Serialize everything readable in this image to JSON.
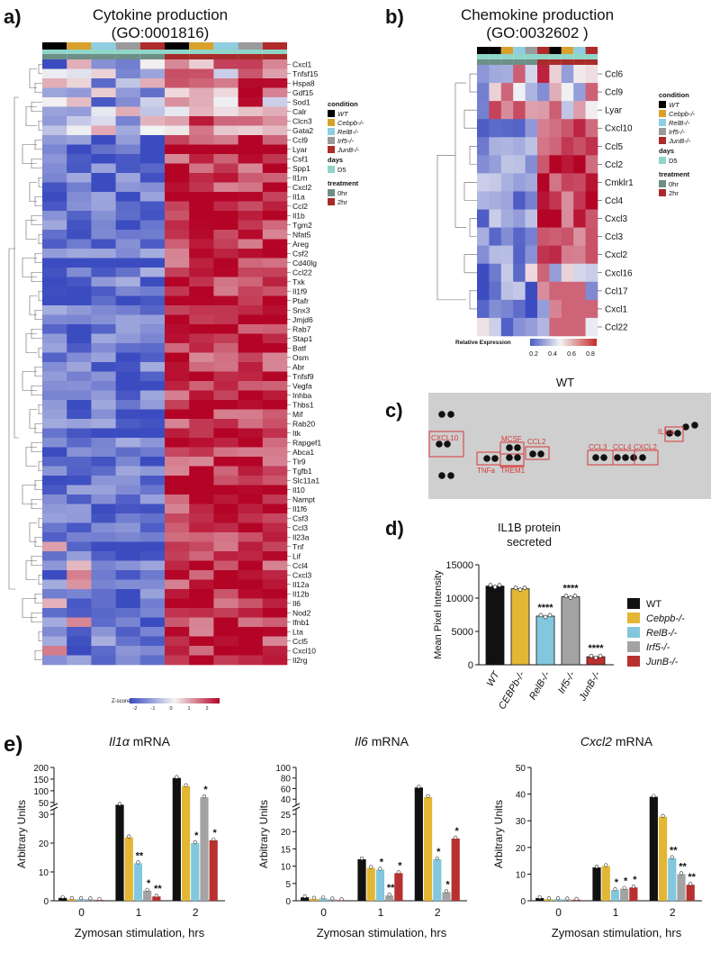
{
  "panels": {
    "a": {
      "letter": "a)",
      "title_line1": "Cytokine production",
      "title_line2": "(GO:0001816)",
      "zscore_label": "Z-score",
      "zscore_ticks": [
        "-2",
        "-1",
        "0",
        "1",
        "2"
      ],
      "genes": [
        "Cxcl1",
        "Tnfsf15",
        "Hspa8",
        "Gdf15",
        "Sod1",
        "Calr",
        "Clcn3",
        "Gata2",
        "Ccl9",
        "Lyar",
        "Csf1",
        "Spp1",
        "Il1rn",
        "Cxcl2",
        "Il1a",
        "Ccl2",
        "Il1b",
        "Tgm2",
        "Nfat5",
        "Areg",
        "Csf2",
        "Cd40lg",
        "Ccl22",
        "Txk",
        "Il1f9",
        "Ptafr",
        "Snx3",
        "Jmjd6",
        "Rab7",
        "Stap1",
        "Batf",
        "Osm",
        "Abr",
        "Tnfsf9",
        "Vegfa",
        "Inhba",
        "Thbs1",
        "Mif",
        "Rab20",
        "Itk",
        "Rapgef1",
        "Abca1",
        "Tlr9",
        "Tgfb1",
        "Slc11a1",
        "Il10",
        "Nampt",
        "Il1f6",
        "Csf3",
        "Ccl3",
        "Il23a",
        "Tnf",
        "Lif",
        "Ccl4",
        "Cxcl3",
        "Il12a",
        "Il12b",
        "Il6",
        "Nod2",
        "Ifnb1",
        "Lta",
        "Ccl5",
        "Cxcl10",
        "Il2rg"
      ]
    },
    "b": {
      "letter": "b)",
      "title_line1": "Chemokine production",
      "title_line2": "(GO:0032602 )",
      "scale_label": "Relative Expression",
      "scale_ticks": [
        "0.2",
        "0.4",
        "0.6",
        "0.8"
      ],
      "genes": [
        "Ccl6",
        "Ccl9",
        "Lyar",
        "Cxcl10",
        "Ccl5",
        "Ccl2",
        "Cmklr1",
        "Ccl4",
        "Cxcl3",
        "Ccl3",
        "Cxcl2",
        "Cxcl16",
        "Ccl17",
        "Cxcl1",
        "Ccl22"
      ]
    },
    "c": {
      "letter": "c)",
      "title": "WT",
      "boxes": [
        "CXCL10",
        "MCSF",
        "CCL2",
        "TNFa",
        "TREM1",
        "CCL3",
        "CCL4",
        "CXCL2",
        "IL1ra"
      ]
    },
    "d": {
      "letter": "d)",
      "title_line1": "IL1B protein",
      "title_line2": "secreted"
    },
    "e": {
      "letter": "e)"
    }
  },
  "legend_ab": {
    "condition_title": "condition",
    "days_title": "days",
    "treatment_title": "treatment",
    "conditions": [
      {
        "label": "WT",
        "color": "#000000"
      },
      {
        "label": "Cebpb-/-",
        "color": "#d9a12b"
      },
      {
        "label": "RelB-/-",
        "color": "#8fcde0"
      },
      {
        "label": "Irf5-/-",
        "color": "#9a9a9a"
      },
      {
        "label": "JunB-/-",
        "color": "#b02a2a"
      }
    ],
    "days": [
      {
        "label": "D5",
        "color": "#8fd6c8"
      }
    ],
    "treatments": [
      {
        "label": "0hr",
        "color": "#6e8f86"
      },
      {
        "label": "2hr",
        "color": "#a82b2b"
      }
    ]
  },
  "legend_de": [
    {
      "label": "WT",
      "color": "#111111"
    },
    {
      "label": "Cebpb-/-",
      "color": "#e3b634"
    },
    {
      "label": "RelB-/-",
      "color": "#82c7dd"
    },
    {
      "label": "Irf5-/-",
      "color": "#a3a3a3"
    },
    {
      "label": "JunB-/-",
      "color": "#b8302f"
    }
  ],
  "chart_data": [
    {
      "id": "d",
      "type": "bar",
      "title": "IL1B protein secreted",
      "ylabel": "Mean Pixel Intensity",
      "categories": [
        "WT",
        "CEBPb-/-",
        "RelB-/-",
        "Irf5-/-",
        "JunB-/-"
      ],
      "values": [
        11800,
        11400,
        7300,
        10200,
        1200
      ],
      "significance": [
        "",
        "",
        "****",
        "****",
        "****"
      ],
      "ylim": [
        0,
        15000
      ],
      "yticks": [
        "0",
        "5000",
        "10000",
        "15000"
      ]
    },
    {
      "id": "e1",
      "type": "bar",
      "title": "Il1α mRNA",
      "title_gene": "Il1α",
      "title_suffix": " mRNA",
      "ylabel": "Arbitrary Units",
      "xlabel": "Zymosan stimulation, hrs",
      "categories": [
        "0",
        "1",
        "2"
      ],
      "series": [
        {
          "name": "WT",
          "values": [
            1,
            40,
            155
          ]
        },
        {
          "name": "Cebpb-/-",
          "values": [
            0.6,
            22,
            120
          ]
        },
        {
          "name": "RelB-/-",
          "values": [
            0.6,
            13,
            20
          ]
        },
        {
          "name": "Irf5-/-",
          "values": [
            0.5,
            3.5,
            72
          ]
        },
        {
          "name": "JunB-/-",
          "values": [
            0.3,
            1.5,
            21
          ]
        }
      ],
      "significance": [
        [
          "",
          "",
          "",
          "",
          ""
        ],
        [
          "",
          "",
          "**",
          "*",
          "**"
        ],
        [
          "",
          "",
          "*",
          "*",
          "*"
        ]
      ],
      "yticks_lower": [
        "0",
        "10",
        "20",
        "30"
      ],
      "yticks_upper": [
        "50",
        "100",
        "150",
        "200"
      ]
    },
    {
      "id": "e2",
      "type": "bar",
      "title": "Il6 mRNA",
      "title_gene": "Il6",
      "title_suffix": " mRNA",
      "ylabel": "Arbitrary Units",
      "xlabel": "Zymosan stimulation, hrs",
      "categories": [
        "0",
        "1",
        "2"
      ],
      "series": [
        {
          "name": "WT",
          "values": [
            1,
            12,
            62
          ]
        },
        {
          "name": "Cebpb-/-",
          "values": [
            0.6,
            9.5,
            44
          ]
        },
        {
          "name": "RelB-/-",
          "values": [
            0.7,
            9,
            12
          ]
        },
        {
          "name": "Irf5-/-",
          "values": [
            0.4,
            1.5,
            2.5
          ]
        },
        {
          "name": "JunB-/-",
          "values": [
            0.2,
            8,
            18
          ]
        }
      ],
      "significance": [
        [
          "",
          "",
          "",
          "",
          ""
        ],
        [
          "",
          "",
          "*",
          "**",
          "*"
        ],
        [
          "",
          "",
          "*",
          "*",
          "*"
        ]
      ],
      "yticks_lower": [
        "0",
        "5",
        "10",
        "15",
        "20",
        "25"
      ],
      "yticks_upper": [
        "40",
        "60",
        "80",
        "100"
      ]
    },
    {
      "id": "e3",
      "type": "bar",
      "title": "Cxcl2 mRNA",
      "title_gene": "Cxcl2",
      "title_suffix": " mRNA",
      "ylabel": "Arbitrary Units",
      "xlabel": "Zymosan stimulation, hrs",
      "categories": [
        "0",
        "1",
        "2"
      ],
      "series": [
        {
          "name": "WT",
          "values": [
            1,
            12.5,
            39
          ]
        },
        {
          "name": "Cebpb-/-",
          "values": [
            0.6,
            13,
            31.5
          ]
        },
        {
          "name": "RelB-/-",
          "values": [
            0.6,
            4,
            16
          ]
        },
        {
          "name": "Irf5-/-",
          "values": [
            0.5,
            4.5,
            10
          ]
        },
        {
          "name": "JunB-/-",
          "values": [
            0.4,
            5,
            6
          ]
        }
      ],
      "significance": [
        [
          "",
          "",
          "",
          "",
          ""
        ],
        [
          "",
          "",
          "*",
          "*",
          "*"
        ],
        [
          "",
          "",
          "**",
          "**",
          "**"
        ]
      ],
      "ylim": [
        0,
        50
      ],
      "yticks": [
        "0",
        "10",
        "20",
        "30",
        "40",
        "50"
      ]
    }
  ]
}
